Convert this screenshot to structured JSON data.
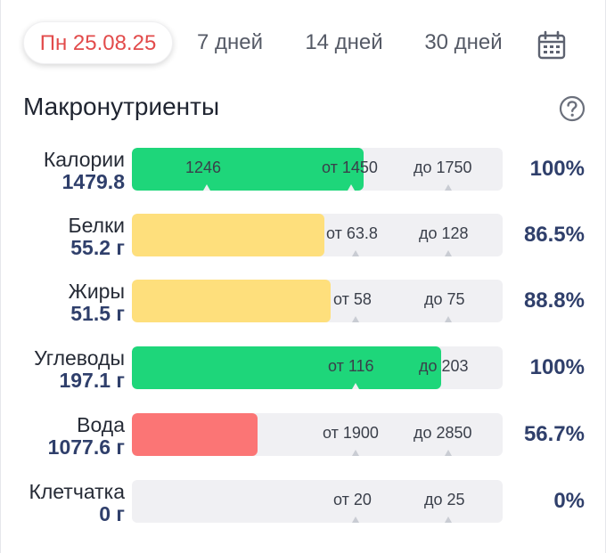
{
  "tabs": [
    {
      "label": "Пн 25.08.25",
      "active": true
    },
    {
      "label": "7 дней",
      "active": false
    },
    {
      "label": "14 дней",
      "active": false
    },
    {
      "label": "30 дней",
      "active": false
    }
  ],
  "calendar_icon": "calendar-icon",
  "heading": "Макронутриенты",
  "help_icon": "question-circle-icon",
  "colors": {
    "green": "#1ed67a",
    "yellow": "#fedf7c",
    "red": "#fb7575",
    "active_tab": "#e24b4b",
    "value": "#2f3f6b"
  },
  "nutrients": [
    {
      "label": "Калории",
      "value": "1479.8",
      "fill_fraction": 0.625,
      "color": "green",
      "mark_inside": "1246",
      "from": "от 1450",
      "to": "до 1750",
      "percent": "100%"
    },
    {
      "label": "Белки",
      "value": "55.2 г",
      "fill_fraction": 0.52,
      "color": "yellow",
      "mark_inside": "",
      "from": "от 63.8",
      "to": "до 128",
      "percent": "86.5%"
    },
    {
      "label": "Жиры",
      "value": "51.5 г",
      "fill_fraction": 0.535,
      "color": "yellow",
      "mark_inside": "",
      "from": "от 58",
      "to": "до 75",
      "percent": "88.8%"
    },
    {
      "label": "Углеводы",
      "value": "197.1 г",
      "fill_fraction": 0.835,
      "color": "green",
      "mark_inside": "",
      "from": "от 116",
      "to": "до 203",
      "percent": "100%"
    },
    {
      "label": "Вода",
      "value": "1077.6 г",
      "fill_fraction": 0.34,
      "color": "red",
      "mark_inside": "",
      "from": "от 1900",
      "to": "до 2850",
      "percent": "56.7%"
    },
    {
      "label": "Клетчатка",
      "value": "0 г",
      "fill_fraction": 0.0,
      "color": "green",
      "mark_inside": "",
      "from": "от 20",
      "to": "до 25",
      "percent": "0%"
    }
  ]
}
